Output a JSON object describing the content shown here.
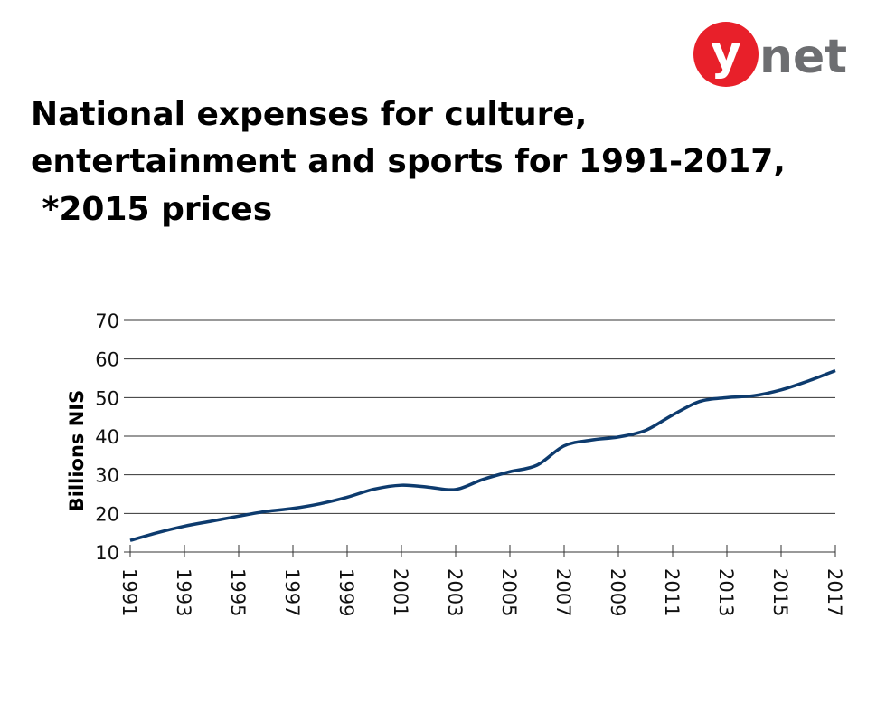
{
  "brand": [
    "y",
    "net"
  ],
  "chart_data": {
    "type": "line",
    "title": [
      "National expenses for culture,",
      "entertainment and sports for 1991-2017,",
      " *2015 prices"
    ],
    "y_label": "Billions NIS",
    "x": [
      1991,
      1992,
      1993,
      1994,
      1995,
      1996,
      1997,
      1998,
      1999,
      2000,
      2001,
      2002,
      2003,
      2004,
      2005,
      2006,
      2007,
      2008,
      2009,
      2010,
      2011,
      2012,
      2013,
      2014,
      2015,
      2016,
      2017
    ],
    "series": [
      {
        "color": "#0d3b6e",
        "values": [
          13,
          15,
          16.7,
          18,
          19.3,
          20.5,
          21.3,
          22.5,
          24.2,
          26.3,
          27.3,
          26.8,
          26.2,
          28.8,
          30.8,
          32.5,
          37.5,
          39,
          39.8,
          41.5,
          45.5,
          49,
          50,
          50.5,
          52,
          54.3,
          57
        ]
      }
    ],
    "xlim": [
      1991,
      2017
    ],
    "xticks": [
      1991,
      1993,
      1995,
      1997,
      1999,
      2001,
      2003,
      2005,
      2007,
      2009,
      2011,
      2013,
      2015,
      2017
    ],
    "ylim": [
      10,
      70
    ],
    "yticks": [
      10,
      20,
      30,
      40,
      50,
      60,
      70
    ],
    "grid": true
  }
}
